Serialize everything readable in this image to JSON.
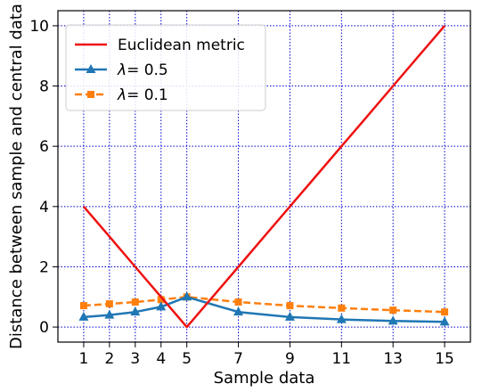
{
  "chart_data": {
    "type": "line",
    "xlabel": "Sample data",
    "ylabel": "Distance between sample and central data",
    "x_ticks": [
      1,
      2,
      3,
      4,
      5,
      7,
      9,
      11,
      13,
      15
    ],
    "y_ticks": [
      0,
      2,
      4,
      6,
      8,
      10
    ],
    "xlim": [
      0,
      16
    ],
    "ylim": [
      -0.5,
      10.5
    ],
    "grid": true,
    "grid_color": "#0000cc",
    "legend_position": "top-left",
    "series": [
      {
        "name": "Euclidean metric",
        "label_prefix": "",
        "label_value": "Euclidean metric",
        "color": "#ee1111",
        "linestyle": "solid",
        "marker": "none",
        "x": [
          1,
          2,
          3,
          4,
          5,
          6,
          7,
          8,
          9,
          10,
          11,
          12,
          13,
          14,
          15
        ],
        "y": [
          4,
          3,
          2,
          1,
          0,
          1,
          2,
          3,
          4,
          5,
          6,
          7,
          8,
          9,
          10
        ]
      },
      {
        "name": "λ= 0.5",
        "label_prefix": "λ",
        "label_value": "= 0.5",
        "color": "#1f77b4",
        "linestyle": "solid",
        "marker": "triangle",
        "x": [
          1,
          2,
          3,
          4,
          5,
          7,
          9,
          11,
          13,
          15
        ],
        "y": [
          0.33,
          0.4,
          0.5,
          0.67,
          1.0,
          0.5,
          0.33,
          0.25,
          0.2,
          0.17
        ]
      },
      {
        "name": "λ= 0.1",
        "label_prefix": "λ",
        "label_value": "= 0.1",
        "color": "#ff7f0e",
        "linestyle": "dashed",
        "marker": "square",
        "x": [
          1,
          2,
          3,
          4,
          5,
          7,
          9,
          11,
          13,
          15
        ],
        "y": [
          0.71,
          0.77,
          0.83,
          0.91,
          1.0,
          0.83,
          0.71,
          0.63,
          0.56,
          0.5
        ]
      }
    ]
  }
}
